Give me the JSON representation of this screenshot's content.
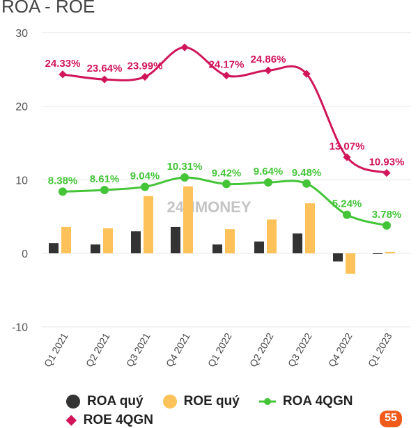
{
  "chart_data": {
    "type": "bar",
    "title": "ROA - ROE",
    "categories": [
      "Q1 2021",
      "Q2 2021",
      "Q3 2021",
      "Q4 2021",
      "Q1 2022",
      "Q2 2022",
      "Q3 2022",
      "Q4 2022",
      "Q1 2023"
    ],
    "ylim": [
      -10,
      30
    ],
    "yticks": [
      -10,
      0,
      10,
      20,
      30
    ],
    "grid": true,
    "legend_placement": "bottom",
    "series": [
      {
        "name": "ROA quý",
        "type": "bar",
        "color": "#333333",
        "values": [
          1.4,
          1.2,
          3.0,
          3.6,
          1.2,
          1.6,
          2.7,
          -1.1,
          0.0
        ]
      },
      {
        "name": "ROE quý",
        "type": "bar",
        "color": "#fdc35a",
        "values": [
          3.6,
          3.4,
          7.8,
          9.1,
          3.3,
          4.6,
          6.8,
          -2.8,
          0.2
        ]
      },
      {
        "name": "ROA 4QGN",
        "type": "line",
        "color": "#44c538",
        "values": [
          8.38,
          8.61,
          9.04,
          10.31,
          9.42,
          9.64,
          9.48,
          5.24,
          3.78
        ],
        "labels": [
          "8.38%",
          "8.61%",
          "9.04%",
          "10.31%",
          "9.42%",
          "9.64%",
          "9.48%",
          "5.24%",
          "3.78%"
        ]
      },
      {
        "name": "ROE 4QGN",
        "type": "line",
        "color": "#d0155a",
        "values": [
          24.33,
          23.64,
          23.99,
          28.0,
          24.17,
          24.86,
          24.4,
          13.07,
          10.93
        ],
        "labels": [
          "24.33%",
          "23.64%",
          "23.99%",
          "",
          "24.17%",
          "24.86%",
          "",
          "13.07%",
          "10.93%"
        ]
      }
    ]
  },
  "watermark": "24HMONEY",
  "badge": "55"
}
